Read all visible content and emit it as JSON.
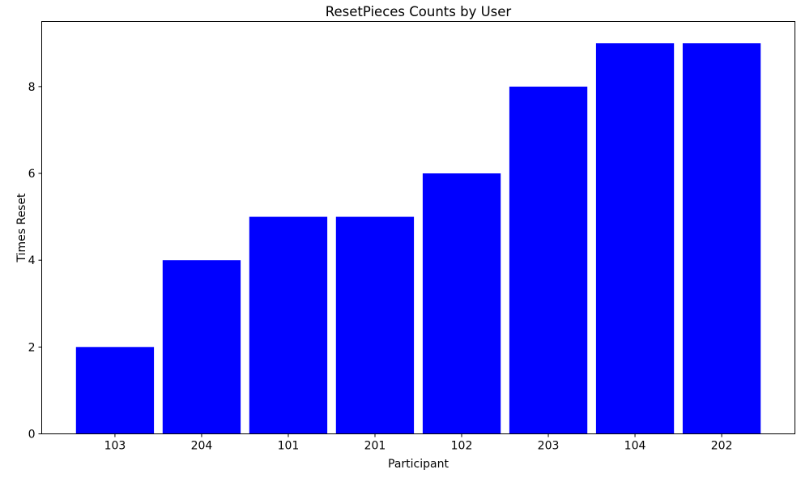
{
  "figure": {
    "background_color": "#ffffff",
    "frame_color": "#000000"
  },
  "chart_data": {
    "type": "bar",
    "title": "ResetPieces Counts by User",
    "xlabel": "Participant",
    "ylabel": "Times Reset",
    "categories": [
      "103",
      "204",
      "101",
      "201",
      "102",
      "203",
      "104",
      "202"
    ],
    "values": [
      2,
      4,
      5,
      5,
      6,
      8,
      9,
      9
    ],
    "bar_color": "#0000ff",
    "yticks": [
      0,
      2,
      4,
      6,
      8
    ],
    "ylim": [
      0,
      9.5
    ],
    "grid": false,
    "legend": null
  }
}
